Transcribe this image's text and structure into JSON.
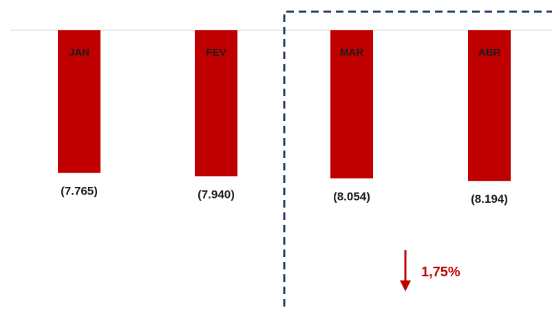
{
  "chart_data": {
    "type": "bar",
    "orientation": "downward",
    "categories": [
      "JAN",
      "FEV",
      "MAR",
      "ABR"
    ],
    "values": [
      -7765,
      -7940,
      -8054,
      -8194
    ],
    "value_labels": [
      "(7.765)",
      "(7.940)",
      "(8.054)",
      "(8.194)"
    ],
    "title": "",
    "xlabel": "",
    "ylabel": "",
    "grid": false,
    "legend": "none",
    "annotations": [
      {
        "text": "1,75%",
        "direction": "down-arrow"
      }
    ],
    "highlight_box": {
      "style": "dashed",
      "from_category": "MAR"
    }
  },
  "colors": {
    "bar": "#c00000",
    "change_text": "#c00000",
    "arrow": "#c00000",
    "box": "#1f3864",
    "axis": "#d9d9d9"
  }
}
